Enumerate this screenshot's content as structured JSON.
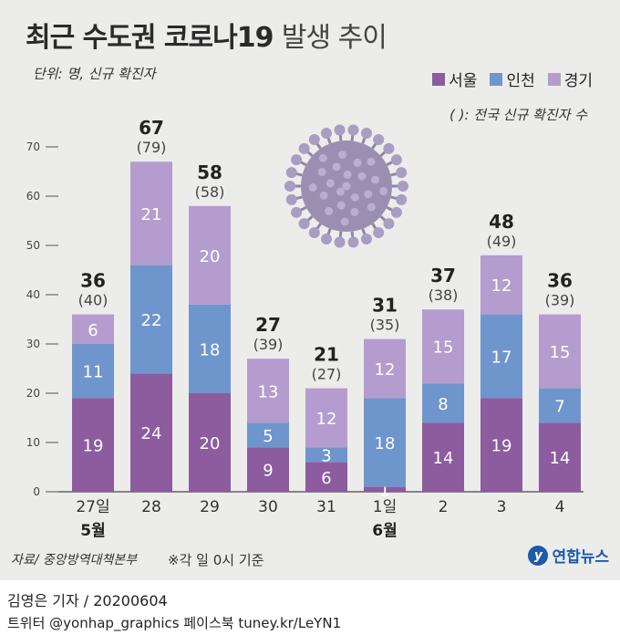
{
  "title_main": "최근 수도권 코로나19",
  "title_rest": "발생 추이",
  "unit": "단위: 명, 신규 확진자",
  "note": "( ): 전국 신규 확진자 수",
  "source": "자료/ 중앙방역대책본부",
  "basis": "※각 일 0시 기준",
  "logo": "연합뉴스",
  "logo_mark": "y",
  "reporter": "김영은 기자 / 20200604",
  "sns": "트위터 @yonhap_graphics  페이스북 tuney.kr/LeYN1",
  "colors": {
    "seoul": "#8c5c9e",
    "incheon": "#6f95cd",
    "gyeonggi": "#b49ccf",
    "panel": "#ececea",
    "virus": "#9a8fb0"
  },
  "chart_data": {
    "type": "bar",
    "stacked": true,
    "categories": [
      "27일",
      "28",
      "29",
      "30",
      "31",
      "1일",
      "2",
      "3",
      "4"
    ],
    "month_labels": [
      {
        "category_index": 0,
        "label": "5월"
      },
      {
        "category_index": 5,
        "label": "6월"
      }
    ],
    "series": [
      {
        "name": "서울",
        "values": [
          19,
          24,
          20,
          9,
          6,
          1,
          14,
          19,
          14
        ]
      },
      {
        "name": "인천",
        "values": [
          11,
          22,
          18,
          5,
          3,
          18,
          8,
          17,
          7
        ]
      },
      {
        "name": "경기",
        "values": [
          6,
          21,
          20,
          13,
          12,
          12,
          15,
          12,
          15
        ]
      }
    ],
    "totals": [
      36,
      67,
      58,
      27,
      21,
      31,
      37,
      48,
      36
    ],
    "national_totals": [
      "(40)",
      "(79)",
      "(58)",
      "(39)",
      "(27)",
      "(35)",
      "(38)",
      "(49)",
      "(39)"
    ],
    "ylim": [
      0,
      70
    ],
    "yticks": [
      0,
      10,
      20,
      30,
      40,
      50,
      60,
      70
    ],
    "legend_position": "top-right"
  }
}
